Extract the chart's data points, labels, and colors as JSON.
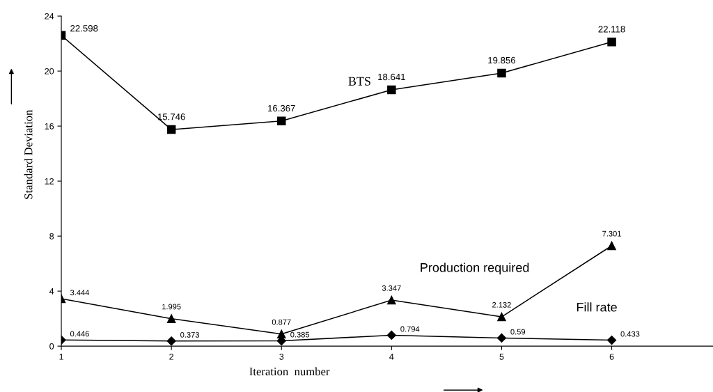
{
  "chart_data": {
    "type": "line",
    "xlabel": "Iteration  number",
    "ylabel": "Standard Deviation",
    "x": [
      1,
      2,
      3,
      4,
      5,
      6
    ],
    "xlim": [
      1,
      6.92
    ],
    "xticks": [
      1,
      2,
      3,
      4,
      5,
      6
    ],
    "ylim": [
      0,
      24
    ],
    "yticks": [
      0,
      4,
      8,
      12,
      16,
      20,
      24
    ],
    "grid": false,
    "legend": false,
    "data_labels": true,
    "series": [
      {
        "name": "BTS",
        "color": "#000000",
        "marker": "square",
        "values": [
          22.598,
          15.746,
          16.367,
          18.641,
          19.856,
          22.118
        ]
      },
      {
        "name": "Production required",
        "color": "#000000",
        "marker": "triangle",
        "values": [
          3.444,
          1.995,
          0.877,
          3.347,
          2.132,
          7.301
        ]
      },
      {
        "name": "Fill rate",
        "color": "#000000",
        "marker": "diamond",
        "values": [
          0.446,
          0.373,
          0.385,
          0.794,
          0.59,
          0.433
        ]
      }
    ]
  }
}
